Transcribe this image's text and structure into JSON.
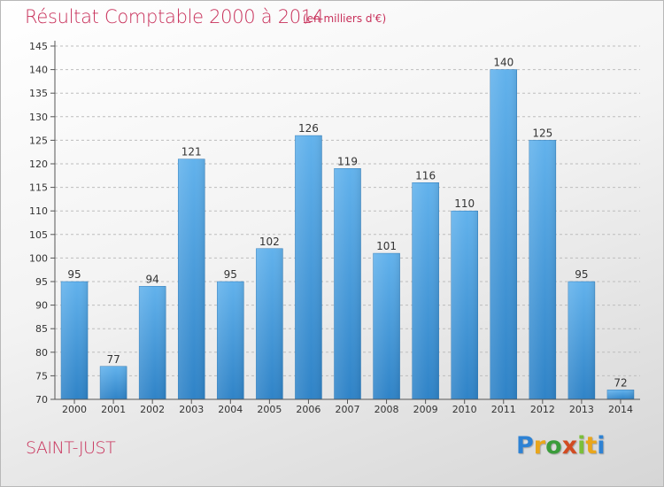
{
  "header": {
    "title": "Résultat Comptable 2000 à 2014",
    "subtitle": "(en milliers d'€)"
  },
  "footer": {
    "place": "SAINT-JUST",
    "brand": "Proxiti"
  },
  "colors": {
    "bar_light": "#62b2ec",
    "bar_dark": "#2f83c7",
    "title": "#c8305a"
  },
  "chart_data": {
    "type": "bar",
    "title": "Résultat Comptable 2000 à 2014",
    "subtitle": "(en milliers d'€)",
    "xlabel": "",
    "ylabel": "",
    "categories": [
      "2000",
      "2001",
      "2002",
      "2003",
      "2004",
      "2005",
      "2006",
      "2007",
      "2008",
      "2009",
      "2010",
      "2011",
      "2012",
      "2013",
      "2014"
    ],
    "values": [
      95,
      77,
      94,
      121,
      95,
      102,
      126,
      119,
      101,
      116,
      110,
      140,
      125,
      95,
      72
    ],
    "ylim": [
      70,
      145
    ],
    "yticks": [
      70,
      75,
      80,
      85,
      90,
      95,
      100,
      105,
      110,
      115,
      120,
      125,
      130,
      135,
      140,
      145
    ],
    "grid": true,
    "data_labels": true
  }
}
